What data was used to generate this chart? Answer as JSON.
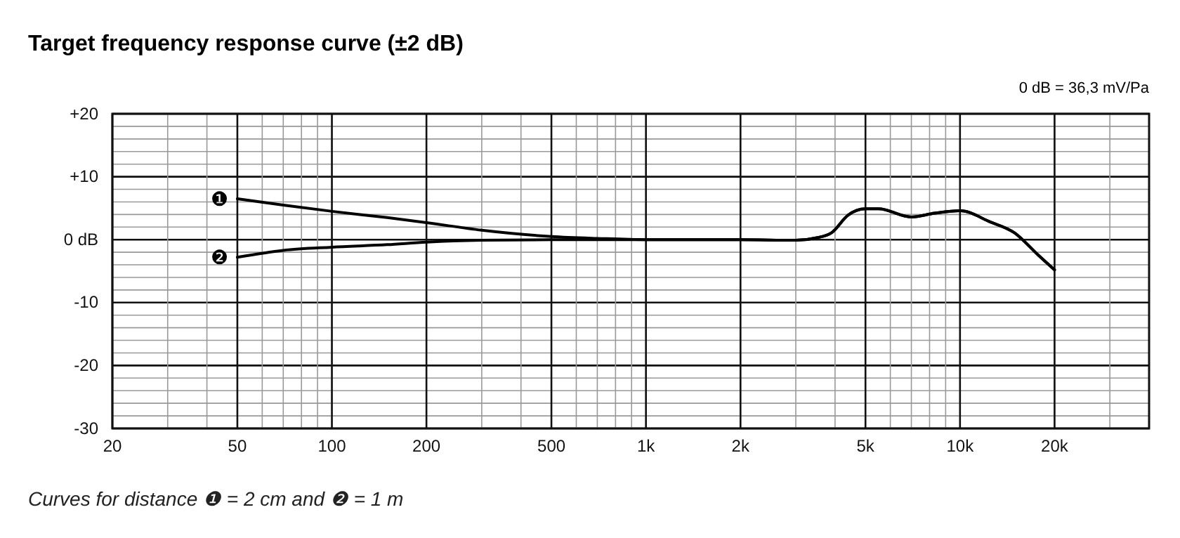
{
  "chart_data": {
    "type": "line",
    "title": "Target frequency response curve (±2 dB)",
    "annotations": [
      "0 dB = 36,3 mV/Pa",
      "Curves for distance ❶ = 2 cm and ❷ = 1 m"
    ],
    "log": "x",
    "grid": true,
    "marker": "none",
    "line_style": "solid",
    "xlim": [
      20,
      40000
    ],
    "xticks": [
      20,
      50,
      100,
      200,
      500,
      {
        "value": 1000,
        "label": "1k"
      },
      {
        "value": 2000,
        "label": "2k"
      },
      {
        "value": 5000,
        "label": "5k"
      },
      {
        "value": 10000,
        "label": "10k"
      },
      {
        "value": 20000,
        "label": "20k"
      }
    ],
    "ylim": [
      -30,
      20
    ],
    "yticks": [
      {
        "value": 20,
        "label": "+20"
      },
      {
        "value": 10,
        "label": "+10"
      },
      {
        "value": 0,
        "label": "0 dB"
      },
      -10,
      -20,
      -30
    ],
    "series": [
      {
        "name": "❶",
        "color": "#000000",
        "x": [
          50,
          70,
          100,
          150,
          200,
          300,
          500,
          700,
          1000,
          2000,
          3000,
          3500,
          3900,
          4400,
          5000,
          5500,
          7000,
          8300,
          10000,
          12500,
          14900,
          17700,
          20000
        ],
        "values": [
          6.5,
          5.5,
          4.5,
          3.5,
          2.7,
          1.5,
          0.5,
          0.2,
          0,
          0,
          -0.1,
          0.3,
          1.1,
          3.9,
          4.9,
          4.9,
          3.6,
          4.2,
          4.6,
          2.8,
          1.1,
          -2.4,
          -4.8
        ]
      },
      {
        "name": "❷",
        "color": "#000000",
        "x": [
          50,
          70,
          100,
          150,
          200,
          300,
          500,
          700,
          1000,
          2000,
          3000,
          3500,
          3900,
          4400,
          5000,
          5500,
          7000,
          8300,
          10000,
          12500,
          14900,
          17700,
          20000
        ],
        "values": [
          -2.8,
          -1.7,
          -1.2,
          -0.8,
          -0.4,
          -0.1,
          0,
          0,
          0,
          0,
          -0.1,
          0.3,
          1.1,
          3.9,
          4.9,
          4.9,
          3.6,
          4.2,
          4.6,
          2.8,
          1.1,
          -2.4,
          -4.8
        ]
      }
    ]
  }
}
